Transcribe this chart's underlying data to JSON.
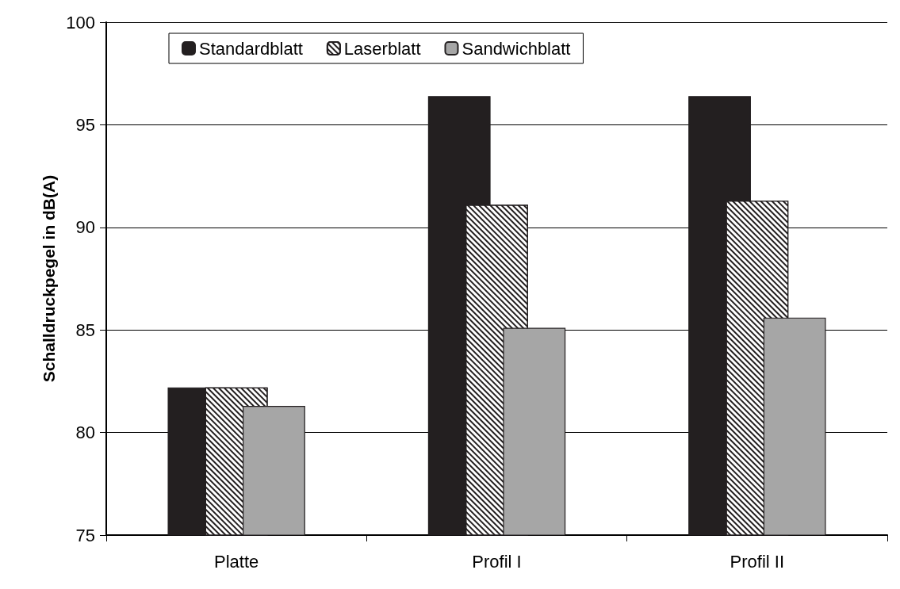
{
  "chart_data": {
    "type": "bar",
    "ylabel": "Schalldruckpegel in dB(A)",
    "categories": [
      "Platte",
      "Profil I",
      "Profil II"
    ],
    "series": [
      {
        "name": "Standardblatt",
        "color": "#231f20",
        "values": [
          82.2,
          96.4,
          96.4
        ]
      },
      {
        "name": "Laserblatt",
        "color": "#ffffff",
        "values": [
          82.2,
          91.1,
          91.3
        ]
      },
      {
        "name": "Sandwichblatt",
        "color": "#a6a6a6",
        "values": [
          81.3,
          85.1,
          85.6
        ]
      }
    ],
    "ylim": [
      75,
      100
    ],
    "yticks": [
      75,
      80,
      85,
      90,
      95,
      100
    ],
    "grid": "y",
    "legend": "top left"
  }
}
